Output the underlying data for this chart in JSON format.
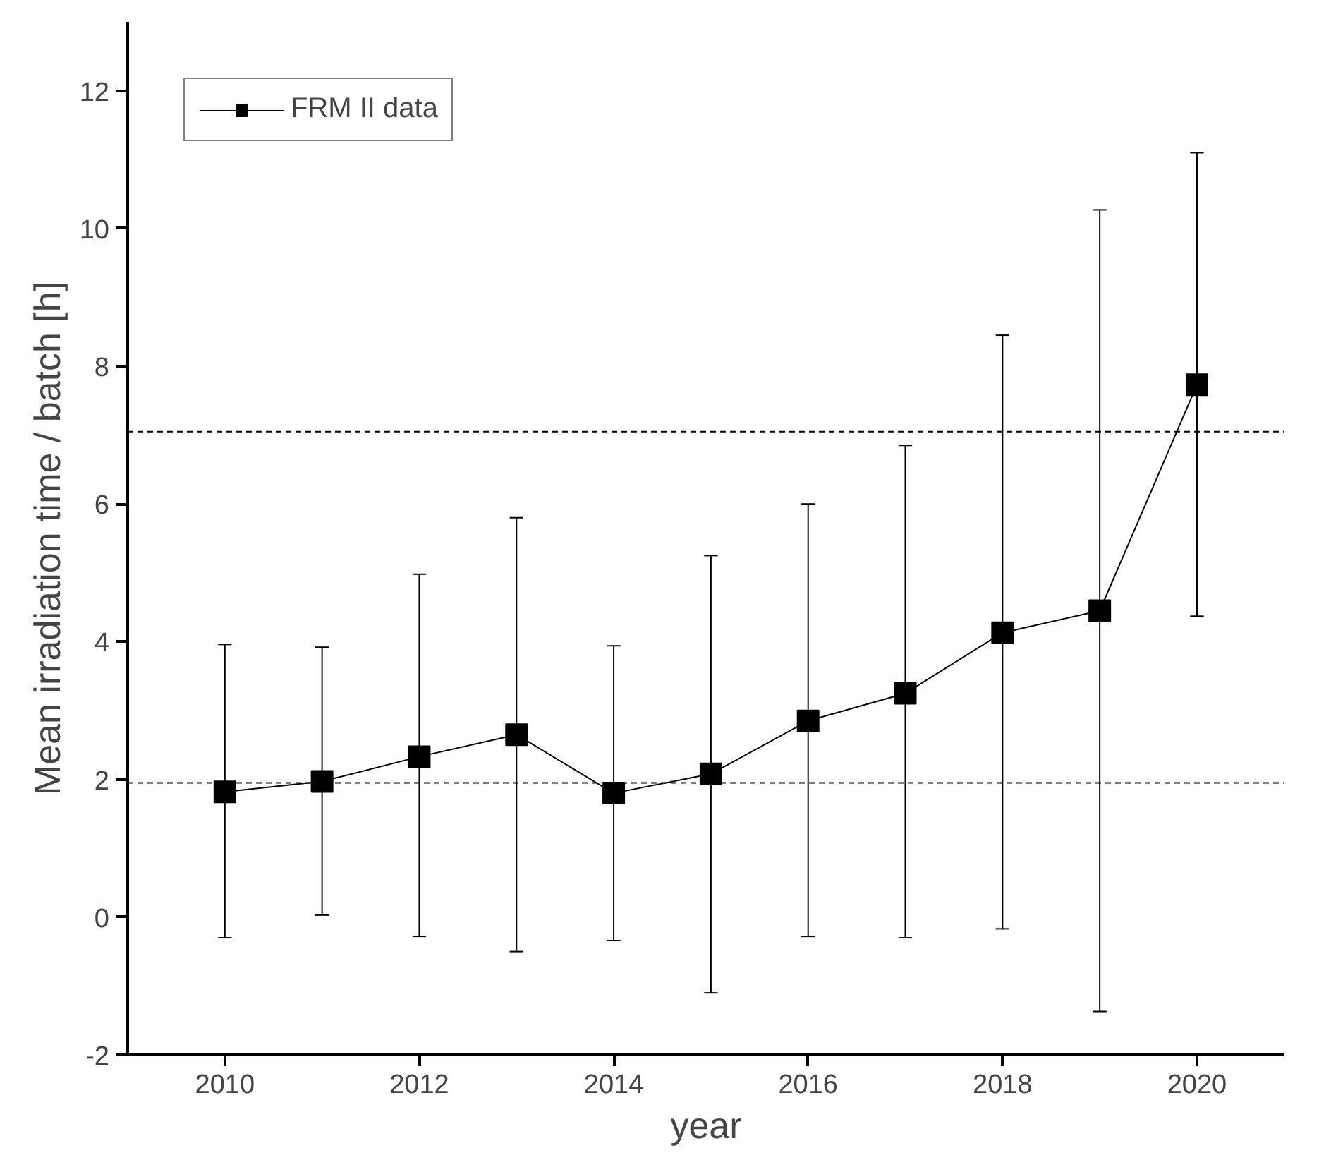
{
  "chart_data": {
    "type": "line",
    "xlabel": "year",
    "ylabel": "Mean irradiation time / batch [h]",
    "x": [
      2010,
      2011,
      2012,
      2013,
      2014,
      2015,
      2016,
      2017,
      2018,
      2019,
      2020
    ],
    "series": [
      {
        "name": "FRM II data",
        "color": "#000000",
        "values": [
          1.82,
          1.97,
          2.33,
          2.65,
          1.8,
          2.08,
          2.85,
          3.25,
          4.13,
          4.45,
          7.73
        ],
        "errors": [
          [
            -0.3,
            3.96
          ],
          [
            0.03,
            3.92
          ],
          [
            -0.28,
            4.98
          ],
          [
            -0.5,
            5.8
          ],
          [
            -0.34,
            3.94
          ],
          [
            -1.1,
            5.25
          ],
          [
            -0.28,
            6.0
          ],
          [
            -0.3,
            6.85
          ],
          [
            -0.17,
            8.45
          ],
          [
            -1.37,
            10.27
          ],
          [
            4.37,
            11.1
          ]
        ]
      }
    ],
    "xlim": [
      2009,
      2020.9
    ],
    "ylim": [
      -2,
      13
    ],
    "xticks": [
      2010,
      2012,
      2014,
      2016,
      2018,
      2020
    ],
    "yticks": [
      -2,
      0,
      2,
      4,
      6,
      8,
      10,
      12
    ],
    "ref_lines": [
      {
        "axis": "y",
        "value": 7.05,
        "line_style": "dashed"
      },
      {
        "axis": "y",
        "value": 1.95,
        "line_style": "dashed"
      }
    ],
    "marker": "square",
    "line_style": "solid",
    "legend": "top left",
    "grid": false
  }
}
